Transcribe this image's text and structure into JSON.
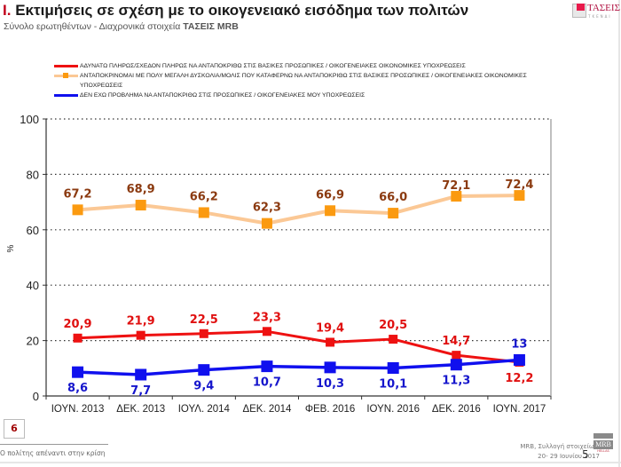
{
  "header": {
    "title_roman": "I.",
    "title_text": "Εκτιμήσεις σε σχέση με το οικογενειακό εισόδημα των πολιτών",
    "subtitle_text": "Σύνολο ερωτηθέντων - Διαχρονικά στοιχεία ",
    "subtitle_bold": "ΤΑΣΕΙΣ MRB",
    "logo_text": "ΤΑΣΕΙΣ",
    "logo_sub": "ΤΚΕΝΔΙ"
  },
  "chart_data": {
    "type": "line",
    "title": "",
    "xlabel": "",
    "ylabel": "%",
    "ylim": [
      0,
      100
    ],
    "yticks": [
      0,
      20,
      40,
      60,
      80,
      100
    ],
    "grid": true,
    "legend_position": "top",
    "categories": [
      "ΙΟΥΝ. 2013",
      "ΔΕΚ. 2013",
      "ΙΟΥΛ. 2014",
      "ΔΕΚ. 2014",
      "ΦΕΒ. 2016",
      "ΙΟΥΝ. 2016",
      "ΔΕΚ. 2016",
      "ΙΟΥΝ. 2017"
    ],
    "series": [
      {
        "name": "ΑΔΥΝΑΤΩ ΠΛΗΡΩΣ/ΣΧΕΔΟΝ ΠΛΗΡΩΣ ΝΑ ΑΝΤΑΠΟΚΡΙΘΩ ΣΤΙΣ ΒΑΣΙΚΕΣ ΠΡΟΣΩΠΙΚΕΣ / ΟΙΚΟΓΕΝΕΙΑΚΕΣ ΟΙΚΟΝΟΜΙΚΕΣ ΥΠΟΧΡΕΩΣΕΙΣ",
        "line_color": "#ee1111",
        "marker_color": "#ee1111",
        "label_color": "#e01010",
        "values": [
          20.9,
          21.9,
          22.5,
          23.3,
          19.4,
          20.5,
          14.7,
          12.2
        ],
        "labels": [
          "20,9",
          "21,9",
          "22,5",
          "23,3",
          "19,4",
          "20,5",
          "14,7",
          "12,2"
        ]
      },
      {
        "name": "ΑΝΤΑΠΟΚΡΙΝΟΜΑΙ ΜΕ ΠΟΛΥ ΜΕΓΑΛΗ ΔΥΣΚΟΛΙΑ/ΜΟΛΙΣ ΠΟΥ ΚΑΤΑΦΕΡΝΩ ΝΑ ΑΝΤΑΠΟΚΡΙΘΩ ΣΤΙΣ ΒΑΣΙΚΕΣ ΠΡΟΣΩΠΙΚΕΣ / ΟΙΚΟΓΕΝΕΙΑΚΕΣ ΟΙΚΟΝΟΜΙΚΕΣ ΥΠΟΧΡΕΩΣΕΙΣ",
        "line_color": "#fbc895",
        "marker_color": "#fb9a10",
        "label_color": "#8b3a10",
        "values": [
          67.2,
          68.9,
          66.2,
          62.3,
          66.9,
          66.0,
          72.1,
          72.4
        ],
        "labels": [
          "67,2",
          "68,9",
          "66,2",
          "62,3",
          "66,9",
          "66,0",
          "72,1",
          "72,4"
        ]
      },
      {
        "name": "ΔΕΝ ΕΧΩ ΠΡΟΒΛΗΜΑ ΝΑ ΑΝΤΑΠΟΚΡΙΘΩ ΣΤΙΣ ΠΡΟΣΩΠΙΚΕΣ / ΟΙΚΟΓΕΝΕΙΑΚΕΣ ΜΟΥ ΥΠΟΧΡΕΩΣΕΙΣ",
        "line_color": "#1010ee",
        "marker_color": "#1010ee",
        "label_color": "#1515cc",
        "values": [
          8.6,
          7.7,
          9.4,
          10.7,
          10.3,
          10.1,
          11.3,
          13.0
        ],
        "labels": [
          "8,6",
          "7,7",
          "9,4",
          "10,7",
          "10,3",
          "10,1",
          "11,3",
          "13"
        ]
      }
    ]
  },
  "footer": {
    "section_number": "6",
    "left_text": "Ο πολίτης απέναντι στην κρίση",
    "source_line1": "MRB, Συλλογή στοιχείων:",
    "source_line2": "20- 29 Ιουνίου 2017",
    "page_number": "5",
    "mrb_logo_text": "MRB",
    "mrb_logo_sub": "HELLAS"
  }
}
